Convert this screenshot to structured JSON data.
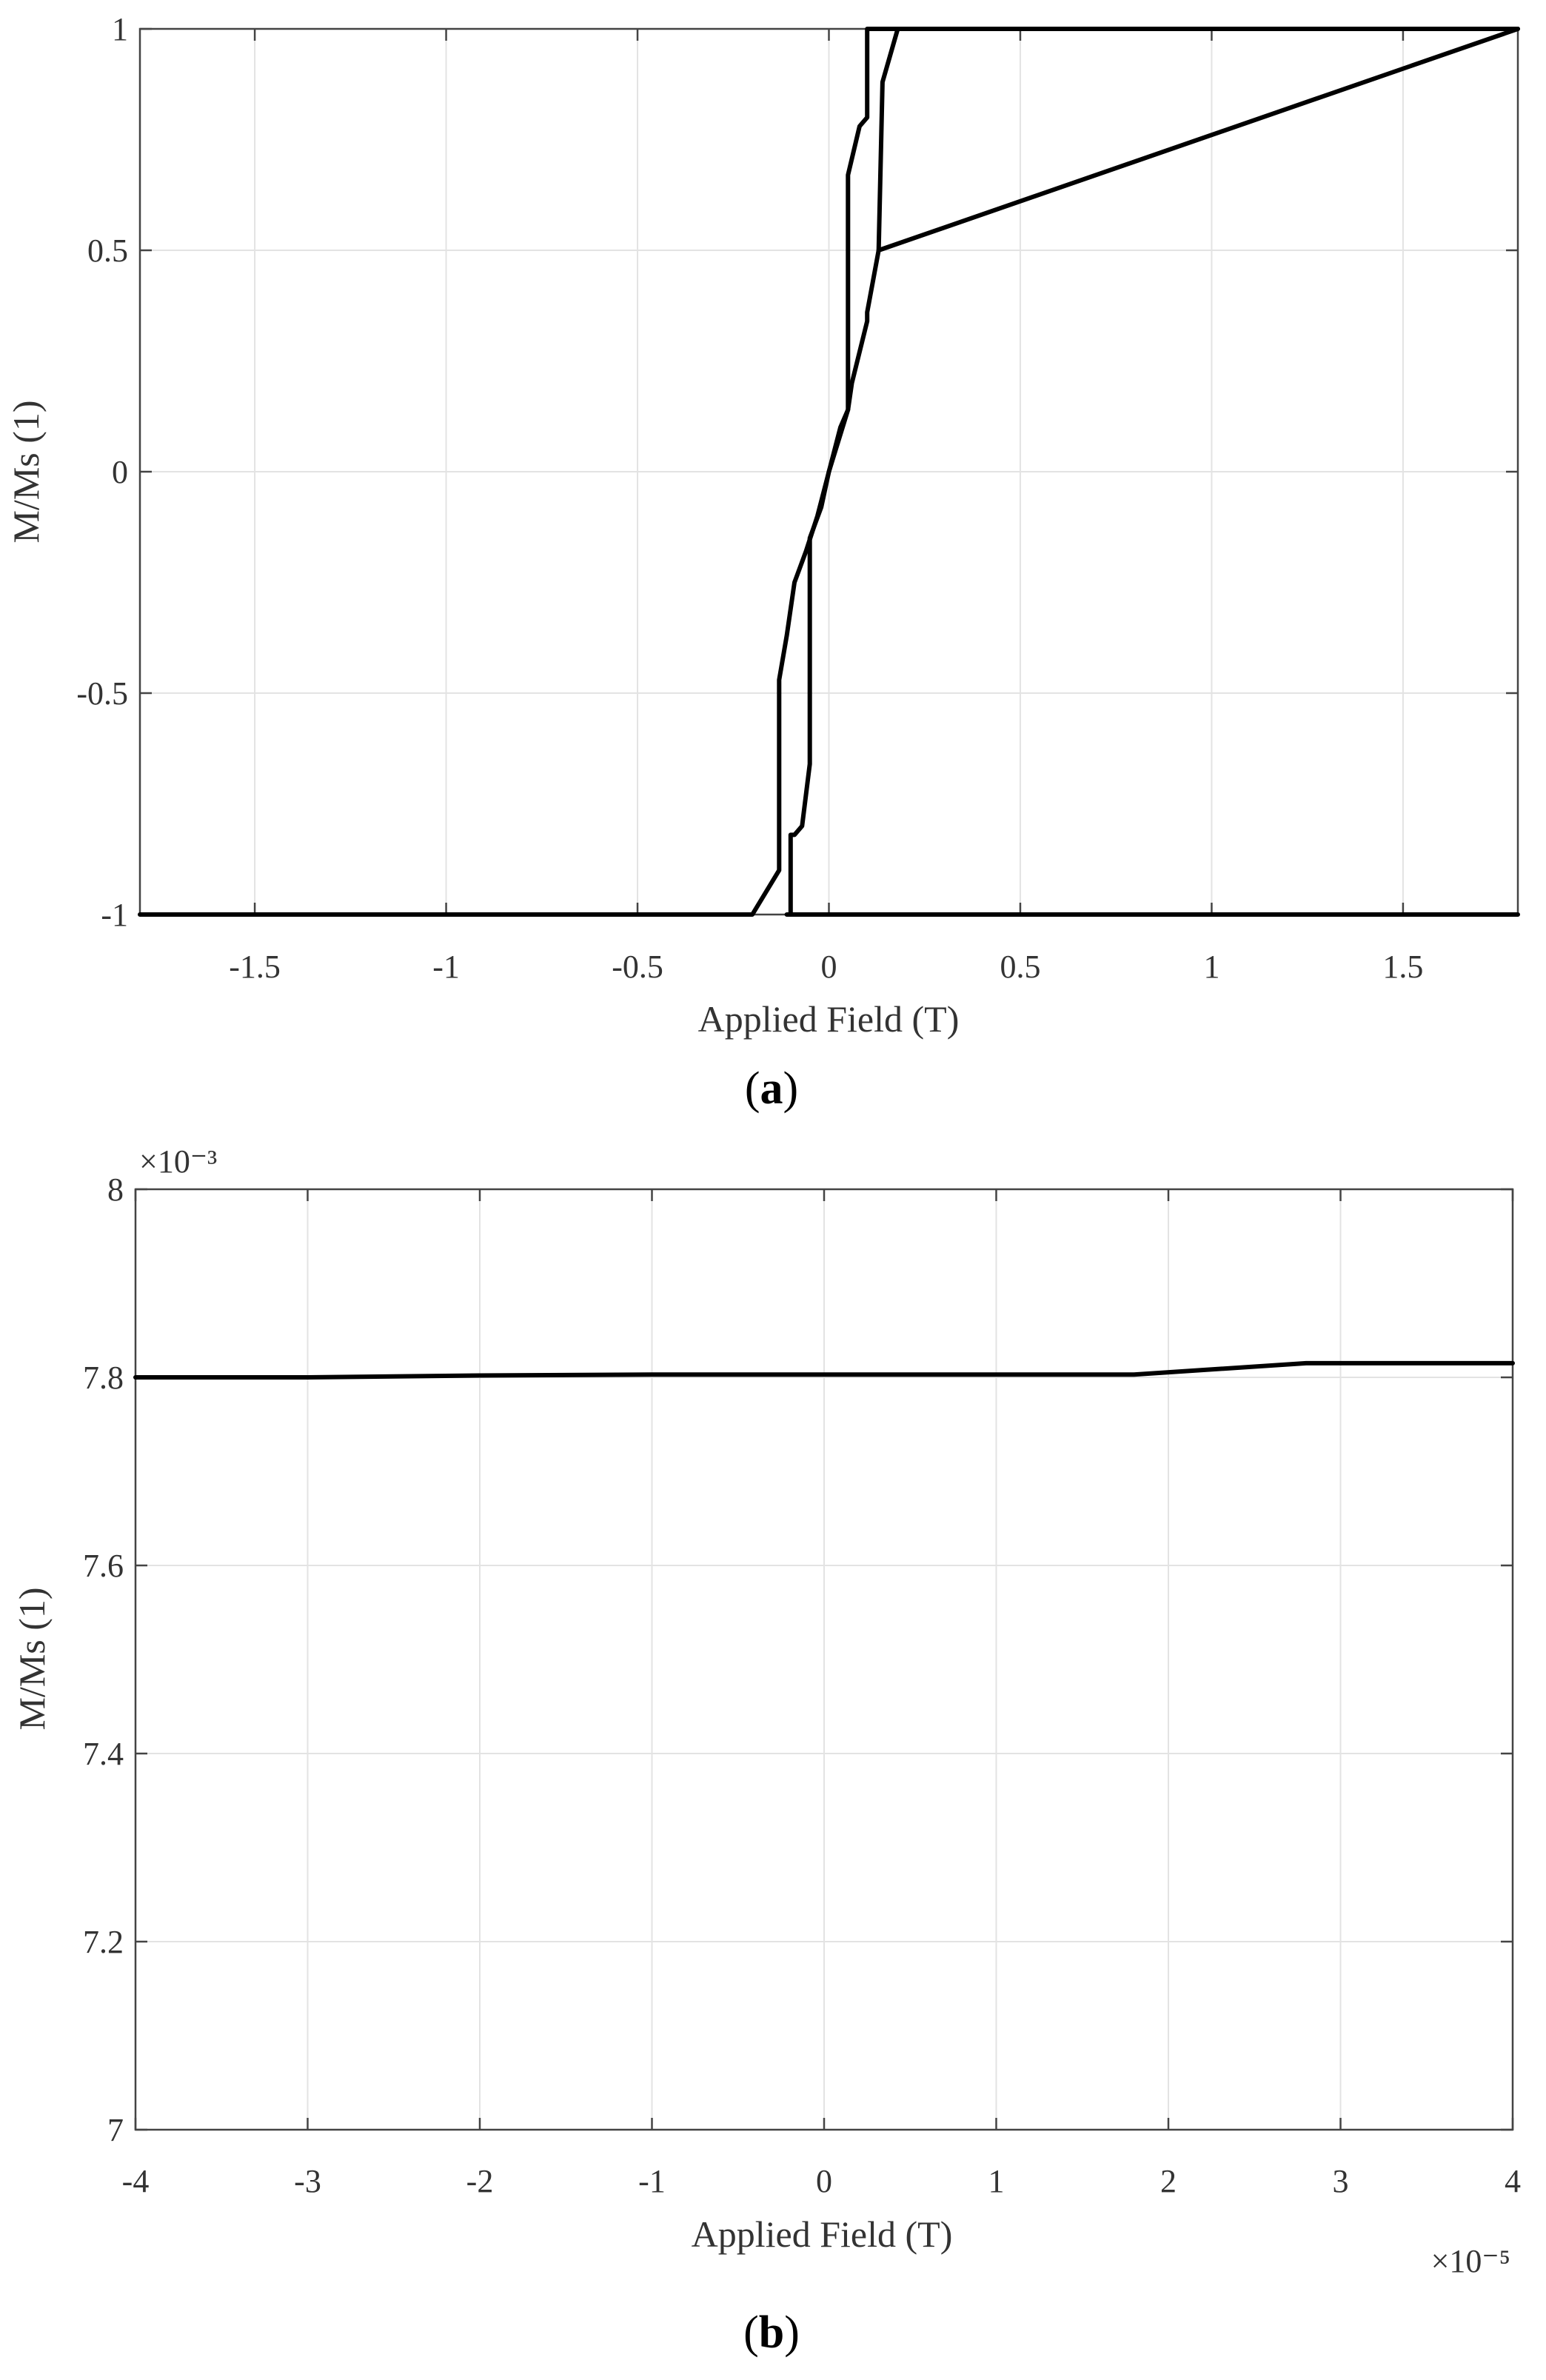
{
  "panels": [
    {
      "id": "a",
      "caption": {
        "open": "(",
        "letter": "a",
        "close": ")"
      },
      "xlabel": "Applied Field (T)",
      "ylabel": "M/Ms (1)",
      "x_multiplier": "",
      "y_multiplier": "",
      "x_tick_labels": [
        "-1.5",
        "-1",
        "-0.5",
        "0",
        "0.5",
        "1",
        "1.5"
      ],
      "y_tick_labels": [
        "1",
        "0.5",
        "0",
        "-0.5",
        "-1"
      ]
    },
    {
      "id": "b",
      "caption": {
        "open": "(",
        "letter": "b",
        "close": ")"
      },
      "xlabel": "Applied Field (T)",
      "ylabel": "M/Ms (1)",
      "x_multiplier": "×10⁻⁵",
      "y_multiplier": "×10⁻³",
      "x_tick_labels": [
        "-4",
        "-3",
        "-2",
        "-1",
        "0",
        "1",
        "2",
        "3",
        "4"
      ],
      "y_tick_labels": [
        "8",
        "7.8",
        "7.6",
        "7.4",
        "7.2",
        "7"
      ]
    }
  ],
  "chart_data": [
    {
      "type": "line",
      "xlabel": "Applied Field (T)",
      "ylabel": "M/Ms (1)",
      "xlim": [
        -1.8,
        1.8
      ],
      "ylim": [
        -1,
        1
      ],
      "x_ticks": [
        -1.5,
        -1,
        -0.5,
        0,
        0.5,
        1,
        1.5
      ],
      "y_ticks": [
        -1,
        -0.5,
        0,
        0.5,
        1
      ],
      "grid": true,
      "series": [
        {
          "color": "#000000",
          "x": [
            -1.8,
            -0.2,
            -0.13,
            -0.13,
            -0.11,
            -0.09,
            -0.06,
            -0.03,
            0,
            0.05,
            0.06,
            0.1,
            0.1,
            0.13,
            1.8
          ],
          "y": [
            -1,
            -1,
            -0.9,
            -0.47,
            -0.37,
            -0.25,
            -0.18,
            -0.1,
            0,
            0.14,
            0.2,
            0.34,
            0.36,
            0.5,
            1
          ]
        },
        {
          "color": "#000000",
          "x": [
            1.8,
            0.1,
            0.1,
            0.08,
            0.05,
            0.05,
            0.03,
            0,
            -0.02,
            -0.05,
            -0.05,
            -0.07,
            -0.09,
            -0.1,
            -0.1,
            -0.11,
            1.8
          ],
          "y": [
            1,
            1,
            0.8,
            0.78,
            0.67,
            0.14,
            0.1,
            0,
            -0.08,
            -0.15,
            -0.66,
            -0.8,
            -0.82,
            -0.82,
            -1,
            -1,
            -1
          ]
        },
        {
          "color": "#000000",
          "x": [
            0.13,
            0.14,
            0.18
          ],
          "y": [
            0.5,
            0.88,
            1
          ]
        }
      ]
    },
    {
      "type": "line",
      "xlabel": "Applied Field (T)",
      "ylabel": "M/Ms (1)",
      "x_scale_factor": "1e-5",
      "y_scale_factor": "1e-3",
      "xlim": [
        -4,
        4
      ],
      "ylim": [
        7.0,
        8.0
      ],
      "x_ticks": [
        -4,
        -3,
        -2,
        -1,
        0,
        1,
        2,
        3,
        4
      ],
      "y_ticks": [
        7.0,
        7.2,
        7.4,
        7.6,
        7.8,
        8.0
      ],
      "grid": true,
      "series": [
        {
          "color": "#000000",
          "x": [
            -4,
            -3,
            -2,
            -1,
            0,
            1,
            1.8,
            2.8,
            4
          ],
          "y": [
            7.8,
            7.8,
            7.802,
            7.803,
            7.803,
            7.803,
            7.803,
            7.815,
            7.815
          ]
        }
      ]
    }
  ]
}
